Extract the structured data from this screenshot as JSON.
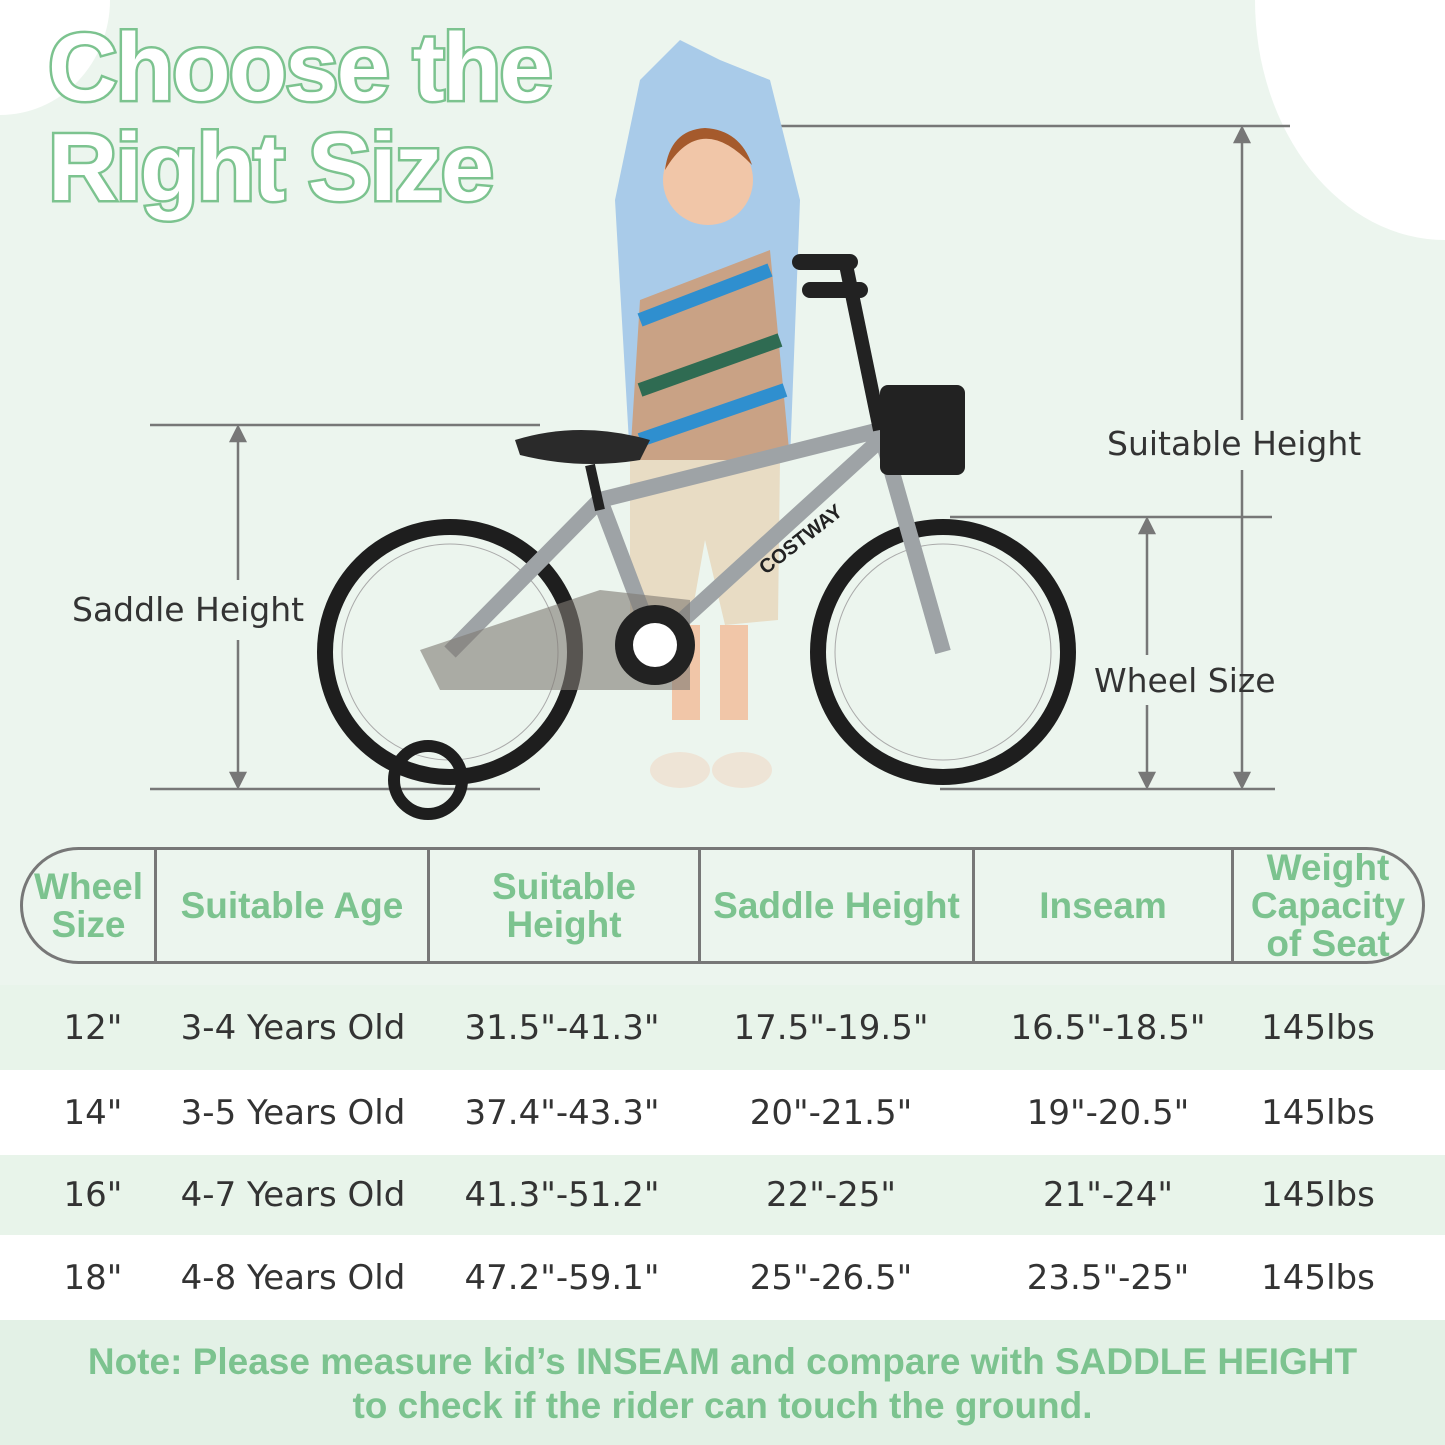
{
  "title": {
    "line1": "Choose the",
    "line2": "Right Size"
  },
  "dimensions": {
    "suitable_height": "Suitable Height",
    "saddle_height": "Saddle Height",
    "wheel_size": "Wheel Size"
  },
  "brand": "COSTWAY",
  "table": {
    "headers": [
      "Wheel Size",
      "Suitable Age",
      "Suitable Height",
      "Saddle Height",
      "Inseam",
      "Weight Capacity of Seat"
    ],
    "rows": [
      [
        "12\"",
        "3-4 Years Old",
        "31.5\"-41.3\"",
        "17.5\"-19.5\"",
        "16.5\"-18.5\"",
        "145lbs"
      ],
      [
        "14\"",
        "3-5 Years Old",
        "37.4\"-43.3\"",
        "20\"-21.5\"",
        "19\"-20.5\"",
        "145lbs"
      ],
      [
        "16\"",
        "4-7 Years Old",
        "41.3\"-51.2\"",
        "22\"-25\"",
        "21\"-24\"",
        "145lbs"
      ],
      [
        "18\"",
        "4-8 Years Old",
        "47.2\"-59.1\"",
        "25\"-26.5\"",
        "23.5\"-25\"",
        "145lbs"
      ]
    ]
  },
  "note": {
    "line1": "Note: Please measure kid’s INSEAM and compare with SADDLE HEIGHT",
    "line2": "to check if the rider can touch the ground."
  },
  "colors": {
    "accent": "#7cc38f",
    "background": "#ecf5ee",
    "text": "#333333",
    "lines": "#777777"
  }
}
